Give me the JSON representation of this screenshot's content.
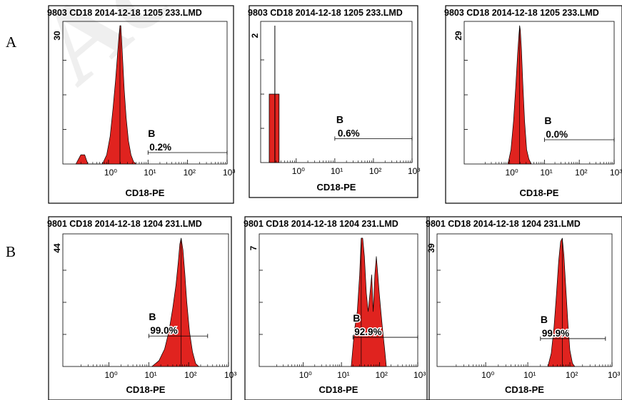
{
  "row_labels": [
    "A",
    "B"
  ],
  "watermark": "Accepted",
  "fill_color": "#e0231f",
  "chart_data": [
    {
      "type": "area",
      "row": "A",
      "title": "9803 CD18 2014-12-18 1205 233.LMD",
      "xlabel": "CD18-PE",
      "x_scale": "log",
      "xlim": [
        0.07,
        1000
      ],
      "x_ticks": [
        "10⁰",
        "10¹",
        "10²",
        "10³"
      ],
      "ylim": [
        0,
        30
      ],
      "y_tick": "30",
      "gate_label": "B",
      "gate_percent": "0.2%",
      "gate_range": [
        10,
        1000
      ],
      "histogram": {
        "x": [
          0.15,
          0.2,
          0.25,
          0.3,
          0.7,
          0.9,
          1.1,
          1.3,
          1.5,
          1.7,
          1.85,
          1.95,
          2.05,
          2.15,
          2.3,
          2.5,
          2.8,
          3.2,
          3.7,
          4.3,
          5.0
        ],
        "y": [
          0,
          2,
          2,
          0,
          0,
          2,
          6,
          12,
          18,
          24,
          28,
          30,
          30,
          27,
          22,
          16,
          10,
          5,
          2,
          0.5,
          0
        ]
      }
    },
    {
      "type": "bar",
      "row": "A",
      "title": "9803 CD18 2014-12-18 1205 233.LMD",
      "xlabel": "CD18-PE",
      "x_scale": "log",
      "xlim": [
        0.07,
        1000
      ],
      "x_ticks": [
        "10⁰",
        "10¹",
        "10²",
        "10³"
      ],
      "ylim": [
        0,
        2
      ],
      "y_tick": "2",
      "gate_label": "B",
      "gate_percent": "0.6%",
      "gate_range": [
        10,
        1000
      ],
      "histogram": {
        "bins": [
          [
            0.2,
            0.28
          ],
          [
            0.28,
            0.36
          ]
        ],
        "y": [
          1,
          1
        ],
        "spike_x": 0.28,
        "spike_y": 2
      }
    },
    {
      "type": "area",
      "row": "A",
      "title": "9803 CD18 2014-12-18 1205 233.LMD",
      "xlabel": "CD18-PE",
      "x_scale": "log",
      "xlim": [
        0.07,
        1000
      ],
      "x_ticks": [
        "10⁰",
        "10¹",
        "10²",
        "10³"
      ],
      "ylim": [
        0,
        29
      ],
      "y_tick": "29",
      "gate_label": "B",
      "gate_percent": "0.0%",
      "gate_range": [
        10,
        1000
      ],
      "histogram": {
        "x": [
          0.9,
          1.1,
          1.3,
          1.5,
          1.7,
          1.85,
          1.95,
          2.05,
          2.2,
          2.4,
          2.7,
          3.1,
          3.6,
          4.2
        ],
        "y": [
          0,
          3,
          9,
          16,
          23,
          27,
          29,
          28,
          24,
          17,
          9,
          3,
          1,
          0
        ]
      }
    },
    {
      "type": "area",
      "row": "B",
      "title": "9801 CD18 2014-12-18 1204 231.LMD",
      "xlabel": "CD18-PE",
      "x_scale": "log",
      "xlim": [
        0.07,
        1000
      ],
      "x_ticks": [
        "10⁰",
        "10¹",
        "10²",
        "10³"
      ],
      "ylim": [
        0,
        44
      ],
      "y_tick": "44",
      "gate_label": "B",
      "gate_percent": "99.0%",
      "gate_range": [
        10,
        300
      ],
      "histogram": {
        "x": [
          12,
          18,
          25,
          32,
          40,
          48,
          55,
          60,
          65,
          72,
          80,
          90,
          105,
          125,
          150,
          180
        ],
        "y": [
          0,
          2,
          6,
          12,
          20,
          28,
          36,
          42,
          44,
          40,
          32,
          22,
          12,
          5,
          1,
          0
        ]
      }
    },
    {
      "type": "area",
      "row": "B",
      "title": "9801 CD18 2014-12-18 1204 231.LMD",
      "xlabel": "CD18-PE",
      "x_scale": "log",
      "xlim": [
        0.07,
        1000
      ],
      "x_ticks": [
        "10⁰",
        "10¹",
        "10²",
        "10³"
      ],
      "ylim": [
        0,
        7
      ],
      "y_tick": "7",
      "gate_label": "B",
      "gate_percent": "92.9%",
      "gate_range": [
        20,
        1000
      ],
      "histogram": {
        "x": [
          18,
          22,
          26,
          30,
          33,
          36,
          40,
          45,
          50,
          56,
          62,
          68,
          75,
          82,
          90,
          98,
          108,
          120,
          135,
          150
        ],
        "y": [
          0,
          2,
          3,
          5,
          7,
          7,
          6,
          4,
          3,
          4,
          5,
          3,
          5,
          6,
          5,
          4,
          3,
          2,
          1,
          0
        ]
      }
    },
    {
      "type": "area",
      "row": "B",
      "title": "9801 CD18 2014-12-18 1204 231.LMD",
      "xlabel": "CD18-PE",
      "x_scale": "log",
      "xlim": [
        0.07,
        1000
      ],
      "x_ticks": [
        "10⁰",
        "10¹",
        "10²",
        "10³"
      ],
      "ylim": [
        0,
        39
      ],
      "y_tick": "39",
      "gate_label": "B",
      "gate_percent": "99.9%",
      "gate_range": [
        20,
        700
      ],
      "histogram": {
        "x": [
          30,
          36,
          42,
          48,
          54,
          60,
          66,
          72,
          80,
          90,
          100,
          115,
          130
        ],
        "y": [
          0,
          4,
          12,
          22,
          32,
          38,
          39,
          34,
          24,
          13,
          5,
          1,
          0
        ]
      }
    }
  ]
}
